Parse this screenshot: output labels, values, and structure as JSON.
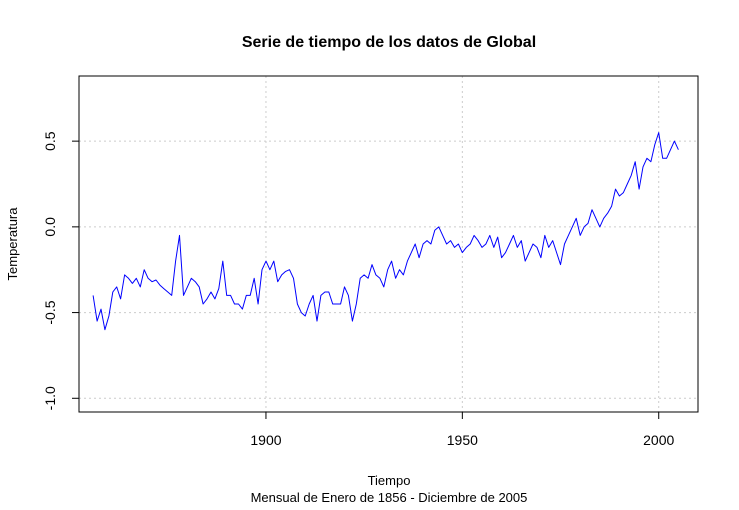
{
  "chart_data": {
    "type": "line",
    "title": "Serie de tiempo de los datos de Global",
    "xlabel": "Tiempo",
    "subtitle": "Mensual de Enero de 1856 - Diciembre de 2005",
    "ylabel": "Temperatura",
    "xlim": [
      1852.4,
      2010.0
    ],
    "ylim": [
      -1.08,
      0.88
    ],
    "x_ticks": [
      1900,
      1950,
      2000
    ],
    "x_tick_labels": [
      "1900",
      "1950",
      "2000"
    ],
    "y_ticks": [
      -1.0,
      -0.5,
      0.0,
      0.5
    ],
    "y_tick_labels": [
      "-1.0",
      "-0.5",
      "0.0",
      "0.5"
    ],
    "grid": true,
    "series": [
      {
        "color": "#0000ff",
        "x_start": 1856.0,
        "x_step": 1.0,
        "values": [
          -0.4,
          -0.55,
          -0.48,
          -0.6,
          -0.52,
          -0.38,
          -0.35,
          -0.42,
          -0.28,
          -0.3,
          -0.33,
          -0.3,
          -0.35,
          -0.25,
          -0.3,
          -0.32,
          -0.31,
          -0.34,
          -0.36,
          -0.38,
          -0.4,
          -0.2,
          -0.05,
          -0.4,
          -0.35,
          -0.3,
          -0.32,
          -0.35,
          -0.45,
          -0.42,
          -0.38,
          -0.42,
          -0.36,
          -0.2,
          -0.4,
          -0.4,
          -0.45,
          -0.45,
          -0.48,
          -0.4,
          -0.4,
          -0.3,
          -0.45,
          -0.25,
          -0.2,
          -0.25,
          -0.2,
          -0.32,
          -0.28,
          -0.26,
          -0.25,
          -0.3,
          -0.45,
          -0.5,
          -0.52,
          -0.45,
          -0.4,
          -0.55,
          -0.4,
          -0.38,
          -0.38,
          -0.45,
          -0.45,
          -0.45,
          -0.35,
          -0.4,
          -0.55,
          -0.45,
          -0.3,
          -0.28,
          -0.3,
          -0.22,
          -0.28,
          -0.3,
          -0.35,
          -0.25,
          -0.2,
          -0.3,
          -0.25,
          -0.28,
          -0.2,
          -0.15,
          -0.1,
          -0.18,
          -0.1,
          -0.08,
          -0.1,
          -0.02,
          0.0,
          -0.05,
          -0.1,
          -0.08,
          -0.12,
          -0.1,
          -0.15,
          -0.12,
          -0.1,
          -0.05,
          -0.08,
          -0.12,
          -0.1,
          -0.05,
          -0.12,
          -0.06,
          -0.18,
          -0.15,
          -0.1,
          -0.05,
          -0.12,
          -0.08,
          -0.2,
          -0.15,
          -0.1,
          -0.12,
          -0.18,
          -0.05,
          -0.12,
          -0.08,
          -0.15,
          -0.22,
          -0.1,
          -0.05,
          0.0,
          0.05,
          -0.05,
          0.0,
          0.02,
          0.1,
          0.05,
          0.0,
          0.05,
          0.08,
          0.12,
          0.22,
          0.18,
          0.2,
          0.25,
          0.3,
          0.38,
          0.22,
          0.35,
          0.4,
          0.38,
          0.48,
          0.55,
          0.4,
          0.4,
          0.45,
          0.5,
          0.45
        ]
      }
    ]
  }
}
